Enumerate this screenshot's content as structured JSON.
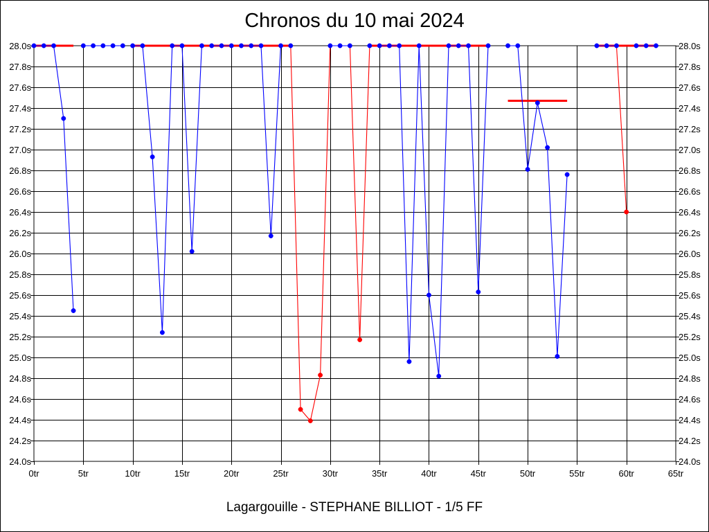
{
  "chart_data": {
    "type": "line",
    "title": "Chronos du 10 mai 2024",
    "caption": "Lagargouille - STEPHANE BILLIOT - 1/5 FF",
    "xlabel": "",
    "ylabel": "",
    "xlim": [
      0,
      65
    ],
    "ylim": [
      24.0,
      28.0
    ],
    "x_ticks": [
      0,
      5,
      10,
      15,
      20,
      25,
      30,
      35,
      40,
      45,
      50,
      55,
      60,
      65
    ],
    "x_tick_labels": [
      "0tr",
      "5tr",
      "10tr",
      "15tr",
      "20tr",
      "25tr",
      "30tr",
      "35tr",
      "40tr",
      "45tr",
      "50tr",
      "55tr",
      "60tr",
      "65tr"
    ],
    "y_ticks": [
      24.0,
      24.2,
      24.4,
      24.6,
      24.8,
      25.0,
      25.2,
      25.4,
      25.6,
      25.8,
      26.0,
      26.2,
      26.4,
      26.6,
      26.8,
      27.0,
      27.2,
      27.4,
      27.6,
      27.8,
      28.0
    ],
    "y_tick_labels": [
      "24.0s",
      "24.2s",
      "24.4s",
      "24.6s",
      "24.8s",
      "25.0s",
      "25.2s",
      "25.4s",
      "25.6s",
      "25.8s",
      "26.0s",
      "26.2s",
      "26.4s",
      "26.6s",
      "26.8s",
      "27.0s",
      "27.2s",
      "27.4s",
      "27.6s",
      "27.8s",
      "28.0s"
    ],
    "y_axis_both_sides": true,
    "grid": true,
    "colors": {
      "blue": "#0000ff",
      "red": "#ff0000",
      "axis": "#000000"
    },
    "segments": [
      {
        "color": "blue",
        "points": [
          [
            0,
            28.0
          ],
          [
            1,
            28.0
          ],
          [
            2,
            28.0
          ],
          [
            3,
            27.3
          ],
          [
            4,
            25.45
          ]
        ]
      },
      {
        "color": "blue",
        "points": [
          [
            5,
            28.0
          ],
          [
            6,
            28.0
          ],
          [
            7,
            28.0
          ],
          [
            8,
            28.0
          ],
          [
            9,
            28.0
          ]
        ]
      },
      {
        "color": "blue",
        "points": [
          [
            10,
            28.0
          ],
          [
            11,
            28.0
          ],
          [
            12,
            26.93
          ],
          [
            13,
            25.24
          ],
          [
            14,
            28.0
          ],
          [
            15,
            28.0
          ],
          [
            16,
            26.02
          ],
          [
            17,
            28.0
          ]
        ]
      },
      {
        "color": "blue",
        "points": [
          [
            18,
            28.0
          ],
          [
            19,
            28.0
          ],
          [
            20,
            28.0
          ]
        ]
      },
      {
        "color": "blue",
        "points": [
          [
            21,
            28.0
          ],
          [
            22,
            28.0
          ],
          [
            23,
            28.0
          ],
          [
            24,
            26.17
          ],
          [
            25,
            28.0
          ]
        ]
      },
      {
        "color": "red",
        "points": [
          [
            26,
            28.0
          ],
          [
            27,
            24.5
          ],
          [
            28,
            24.39
          ],
          [
            29,
            24.83
          ],
          [
            30,
            28.0
          ]
        ]
      },
      {
        "color": "blue",
        "points": [
          [
            30,
            28.0
          ],
          [
            31,
            28.0
          ],
          [
            32,
            28.0
          ]
        ]
      },
      {
        "color": "red",
        "points": [
          [
            32,
            28.0
          ],
          [
            33,
            25.17
          ],
          [
            34,
            28.0
          ]
        ]
      },
      {
        "color": "blue",
        "points": [
          [
            35,
            28.0
          ],
          [
            36,
            28.0
          ],
          [
            37,
            28.0
          ],
          [
            38,
            24.96
          ],
          [
            39,
            28.0
          ],
          [
            40,
            25.6
          ],
          [
            41,
            24.82
          ],
          [
            42,
            28.0
          ],
          [
            43,
            28.0
          ],
          [
            44,
            28.0
          ],
          [
            45,
            25.63
          ],
          [
            46,
            28.0
          ]
        ]
      },
      {
        "color": "blue",
        "points": [
          [
            48,
            28.0
          ],
          [
            49,
            28.0
          ],
          [
            50,
            26.81
          ],
          [
            51,
            27.45
          ],
          [
            52,
            27.02
          ],
          [
            53,
            25.01
          ],
          [
            54,
            26.76
          ]
        ]
      },
      {
        "color": "blue",
        "points": [
          [
            57,
            28.0
          ],
          [
            58,
            28.0
          ],
          [
            59,
            28.0
          ]
        ]
      },
      {
        "color": "red",
        "points": [
          [
            59,
            28.0
          ],
          [
            60,
            26.4
          ]
        ]
      },
      {
        "color": "blue",
        "points": [
          [
            61,
            28.0
          ],
          [
            62,
            28.0
          ],
          [
            63,
            28.0
          ]
        ]
      }
    ],
    "reference_lines": [
      {
        "color": "red",
        "x1": 0,
        "x2": 4,
        "y": 28.0
      },
      {
        "color": "red",
        "x1": 10,
        "x2": 26,
        "y": 28.0
      },
      {
        "color": "red",
        "x1": 34,
        "x2": 46,
        "y": 28.0
      },
      {
        "color": "red",
        "x1": 57,
        "x2": 63,
        "y": 28.0
      },
      {
        "color": "red",
        "x1": 48,
        "x2": 54,
        "y": 27.47
      }
    ],
    "markers": [
      {
        "x": 0,
        "y": 28.0,
        "color": "blue"
      },
      {
        "x": 1,
        "y": 28.0,
        "color": "blue"
      },
      {
        "x": 2,
        "y": 28.0,
        "color": "blue"
      },
      {
        "x": 3,
        "y": 27.3,
        "color": "blue"
      },
      {
        "x": 4,
        "y": 25.45,
        "color": "blue"
      },
      {
        "x": 5,
        "y": 28.0,
        "color": "blue"
      },
      {
        "x": 6,
        "y": 28.0,
        "color": "blue"
      },
      {
        "x": 7,
        "y": 28.0,
        "color": "blue"
      },
      {
        "x": 8,
        "y": 28.0,
        "color": "blue"
      },
      {
        "x": 9,
        "y": 28.0,
        "color": "blue"
      },
      {
        "x": 10,
        "y": 28.0,
        "color": "blue"
      },
      {
        "x": 11,
        "y": 28.0,
        "color": "blue"
      },
      {
        "x": 12,
        "y": 26.93,
        "color": "blue"
      },
      {
        "x": 13,
        "y": 25.24,
        "color": "blue"
      },
      {
        "x": 14,
        "y": 28.0,
        "color": "blue"
      },
      {
        "x": 15,
        "y": 28.0,
        "color": "blue"
      },
      {
        "x": 16,
        "y": 26.02,
        "color": "blue"
      },
      {
        "x": 17,
        "y": 28.0,
        "color": "blue"
      },
      {
        "x": 18,
        "y": 28.0,
        "color": "blue"
      },
      {
        "x": 19,
        "y": 28.0,
        "color": "blue"
      },
      {
        "x": 20,
        "y": 28.0,
        "color": "blue"
      },
      {
        "x": 21,
        "y": 28.0,
        "color": "blue"
      },
      {
        "x": 22,
        "y": 28.0,
        "color": "blue"
      },
      {
        "x": 23,
        "y": 28.0,
        "color": "blue"
      },
      {
        "x": 24,
        "y": 26.17,
        "color": "blue"
      },
      {
        "x": 25,
        "y": 28.0,
        "color": "blue"
      },
      {
        "x": 26,
        "y": 28.0,
        "color": "blue"
      },
      {
        "x": 27,
        "y": 24.5,
        "color": "red"
      },
      {
        "x": 28,
        "y": 24.39,
        "color": "red"
      },
      {
        "x": 29,
        "y": 24.83,
        "color": "red"
      },
      {
        "x": 30,
        "y": 28.0,
        "color": "blue"
      },
      {
        "x": 31,
        "y": 28.0,
        "color": "blue"
      },
      {
        "x": 32,
        "y": 28.0,
        "color": "blue"
      },
      {
        "x": 33,
        "y": 25.17,
        "color": "red"
      },
      {
        "x": 34,
        "y": 28.0,
        "color": "blue"
      },
      {
        "x": 35,
        "y": 28.0,
        "color": "blue"
      },
      {
        "x": 36,
        "y": 28.0,
        "color": "blue"
      },
      {
        "x": 37,
        "y": 28.0,
        "color": "blue"
      },
      {
        "x": 38,
        "y": 24.96,
        "color": "blue"
      },
      {
        "x": 39,
        "y": 28.0,
        "color": "blue"
      },
      {
        "x": 40,
        "y": 25.6,
        "color": "blue"
      },
      {
        "x": 41,
        "y": 24.82,
        "color": "blue"
      },
      {
        "x": 42,
        "y": 28.0,
        "color": "blue"
      },
      {
        "x": 43,
        "y": 28.0,
        "color": "blue"
      },
      {
        "x": 44,
        "y": 28.0,
        "color": "blue"
      },
      {
        "x": 45,
        "y": 25.63,
        "color": "blue"
      },
      {
        "x": 46,
        "y": 28.0,
        "color": "blue"
      },
      {
        "x": 48,
        "y": 28.0,
        "color": "blue"
      },
      {
        "x": 49,
        "y": 28.0,
        "color": "blue"
      },
      {
        "x": 50,
        "y": 26.81,
        "color": "blue"
      },
      {
        "x": 51,
        "y": 27.45,
        "color": "blue"
      },
      {
        "x": 52,
        "y": 27.02,
        "color": "blue"
      },
      {
        "x": 53,
        "y": 25.01,
        "color": "blue"
      },
      {
        "x": 54,
        "y": 26.76,
        "color": "blue"
      },
      {
        "x": 57,
        "y": 28.0,
        "color": "blue"
      },
      {
        "x": 58,
        "y": 28.0,
        "color": "blue"
      },
      {
        "x": 59,
        "y": 28.0,
        "color": "blue"
      },
      {
        "x": 60,
        "y": 26.4,
        "color": "red"
      },
      {
        "x": 61,
        "y": 28.0,
        "color": "blue"
      },
      {
        "x": 62,
        "y": 28.0,
        "color": "blue"
      },
      {
        "x": 63,
        "y": 28.0,
        "color": "blue"
      }
    ]
  }
}
